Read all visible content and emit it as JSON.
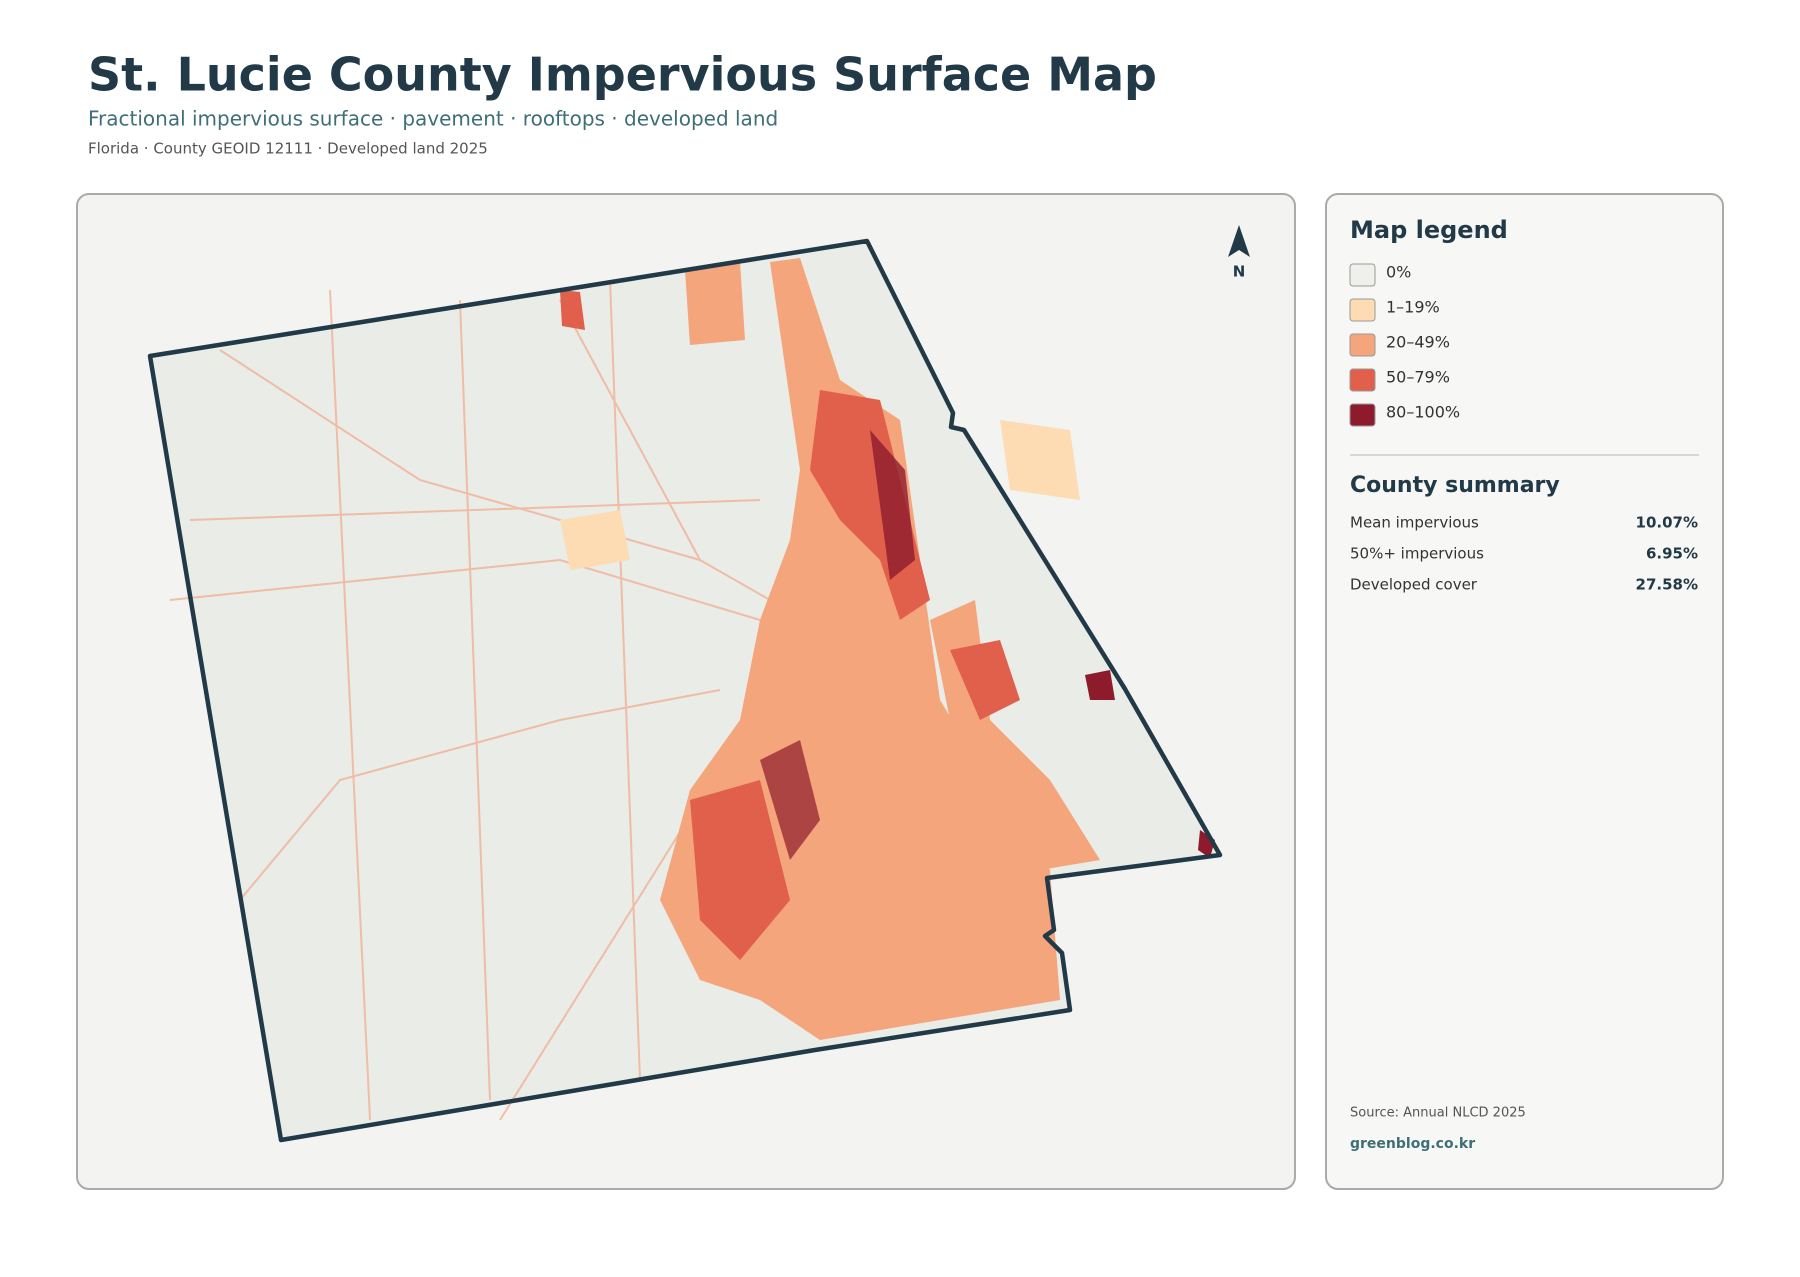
{
  "header": {
    "title": "St. Lucie County Impervious Surface Map",
    "subtitle": "Fractional impervious surface · pavement · rooftops · developed land",
    "meta": "Florida · County GEOID 12111 · Developed land 2025"
  },
  "map": {
    "north_label": "N"
  },
  "legend": {
    "title": "Map legend",
    "items": [
      {
        "label": "0%",
        "color": "#efefec"
      },
      {
        "label": "1–19%",
        "color": "#fddcb4"
      },
      {
        "label": "20–49%",
        "color": "#f4a57c"
      },
      {
        "label": "50–79%",
        "color": "#e0604c"
      },
      {
        "label": "80–100%",
        "color": "#8e1b2c"
      }
    ]
  },
  "summary": {
    "title": "County summary",
    "rows": [
      {
        "label": "Mean impervious",
        "value": "10.07%"
      },
      {
        "label": "50%+ impervious",
        "value": "6.95%"
      },
      {
        "label": "Developed cover",
        "value": "27.58%"
      }
    ]
  },
  "footer": {
    "source": "Source: Annual NLCD 2025",
    "credit": "greenblog.co.kr"
  }
}
